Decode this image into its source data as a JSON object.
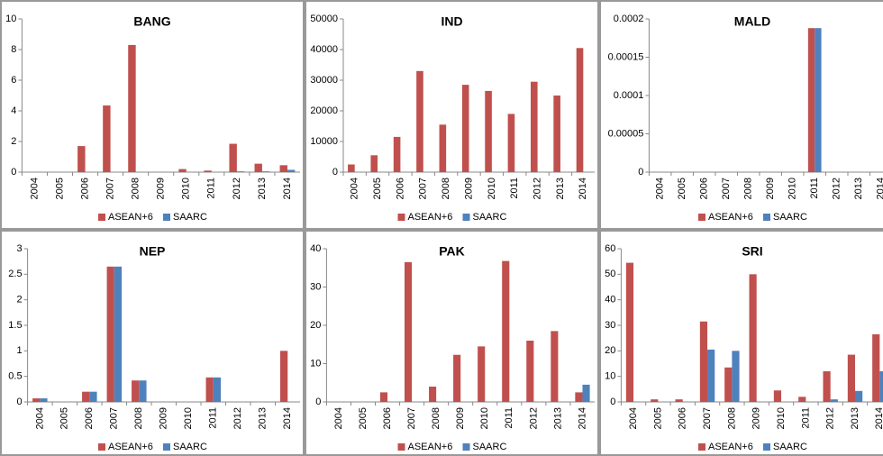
{
  "chart_data": [
    {
      "type": "bar",
      "title": "BANG",
      "categories": [
        "2004",
        "2005",
        "2006",
        "2007",
        "2008",
        "2009",
        "2010",
        "2011",
        "2012",
        "2013",
        "2014"
      ],
      "series": [
        {
          "name": "ASEAN+6",
          "color": "#c0504d",
          "values": [
            0,
            0,
            1.7,
            4.35,
            8.3,
            0,
            0.2,
            0.1,
            1.85,
            0.55,
            0.45
          ]
        },
        {
          "name": "SAARC",
          "color": "#4f81bd",
          "values": [
            0,
            0,
            0,
            0,
            0,
            0,
            0,
            0,
            0.05,
            0.05,
            0.15
          ]
        }
      ],
      "ylim": [
        0,
        10
      ],
      "yticks": [
        0,
        2,
        4,
        6,
        8,
        10
      ]
    },
    {
      "type": "bar",
      "title": "IND",
      "categories": [
        "2004",
        "2005",
        "2006",
        "2007",
        "2008",
        "2009",
        "2010",
        "2011",
        "2012",
        "2013",
        "2014"
      ],
      "series": [
        {
          "name": "ASEAN+6",
          "color": "#c0504d",
          "values": [
            2500,
            5500,
            11500,
            33000,
            15500,
            28500,
            26500,
            19000,
            29500,
            25000,
            40500
          ]
        },
        {
          "name": "SAARC",
          "color": "#4f81bd",
          "values": [
            0,
            0,
            0,
            0,
            0,
            0,
            0,
            0,
            0,
            0,
            0
          ]
        }
      ],
      "ylim": [
        0,
        50000
      ],
      "yticks": [
        0,
        10000,
        20000,
        30000,
        40000,
        50000
      ]
    },
    {
      "type": "bar",
      "title": "MALD",
      "categories": [
        "2004",
        "2005",
        "2006",
        "2007",
        "2008",
        "2009",
        "2010",
        "2011",
        "2012",
        "2013",
        "2014"
      ],
      "series": [
        {
          "name": "ASEAN+6",
          "color": "#c0504d",
          "values": [
            0,
            0,
            0,
            0,
            0,
            0,
            0,
            0.000188,
            0,
            0,
            0
          ]
        },
        {
          "name": "SAARC",
          "color": "#4f81bd",
          "values": [
            0,
            0,
            0,
            0,
            0,
            0,
            0,
            0.000188,
            0,
            0,
            0
          ]
        }
      ],
      "ylim": [
        0,
        0.0002
      ],
      "yticks": [
        0,
        5e-05,
        0.0001,
        0.00015,
        0.0002
      ]
    },
    {
      "type": "bar",
      "title": "NEP",
      "categories": [
        "2004",
        "2005",
        "2006",
        "2007",
        "2008",
        "2009",
        "2010",
        "2011",
        "2012",
        "2013",
        "2014"
      ],
      "series": [
        {
          "name": "ASEAN+6",
          "color": "#c0504d",
          "values": [
            0.07,
            0,
            0.2,
            2.65,
            0.42,
            0,
            0,
            0.48,
            0,
            0,
            1.0
          ]
        },
        {
          "name": "SAARC",
          "color": "#4f81bd",
          "values": [
            0.07,
            0,
            0.2,
            2.65,
            0.42,
            0,
            0,
            0.48,
            0,
            0,
            0
          ]
        }
      ],
      "ylim": [
        0,
        3
      ],
      "yticks": [
        0,
        0.5,
        1,
        1.5,
        2,
        2.5,
        3
      ]
    },
    {
      "type": "bar",
      "title": "PAK",
      "categories": [
        "2004",
        "2005",
        "2006",
        "2007",
        "2008",
        "2009",
        "2010",
        "2011",
        "2012",
        "2013",
        "2014"
      ],
      "series": [
        {
          "name": "ASEAN+6",
          "color": "#c0504d",
          "values": [
            0,
            0,
            2.5,
            36.5,
            4,
            12.3,
            14.5,
            36.8,
            16,
            18.5,
            2.5
          ]
        },
        {
          "name": "SAARC",
          "color": "#4f81bd",
          "values": [
            0,
            0,
            0,
            0,
            0,
            0,
            0,
            0,
            0,
            0,
            4.5
          ]
        }
      ],
      "ylim": [
        0,
        40
      ],
      "yticks": [
        0,
        10,
        20,
        30,
        40
      ]
    },
    {
      "type": "bar",
      "title": "SRI",
      "categories": [
        "2004",
        "2005",
        "2006",
        "2007",
        "2008",
        "2009",
        "2010",
        "2011",
        "2012",
        "2013",
        "2014"
      ],
      "series": [
        {
          "name": "ASEAN+6",
          "color": "#c0504d",
          "values": [
            54.5,
            1,
            1,
            31.5,
            13.5,
            50,
            4.5,
            2,
            12,
            18.5,
            26.5
          ]
        },
        {
          "name": "SAARC",
          "color": "#4f81bd",
          "values": [
            0,
            0,
            0,
            20.5,
            20,
            0,
            0,
            0,
            1,
            4.3,
            12
          ]
        }
      ],
      "ylim": [
        0,
        60
      ],
      "yticks": [
        0,
        10,
        20,
        30,
        40,
        50,
        60
      ]
    }
  ]
}
